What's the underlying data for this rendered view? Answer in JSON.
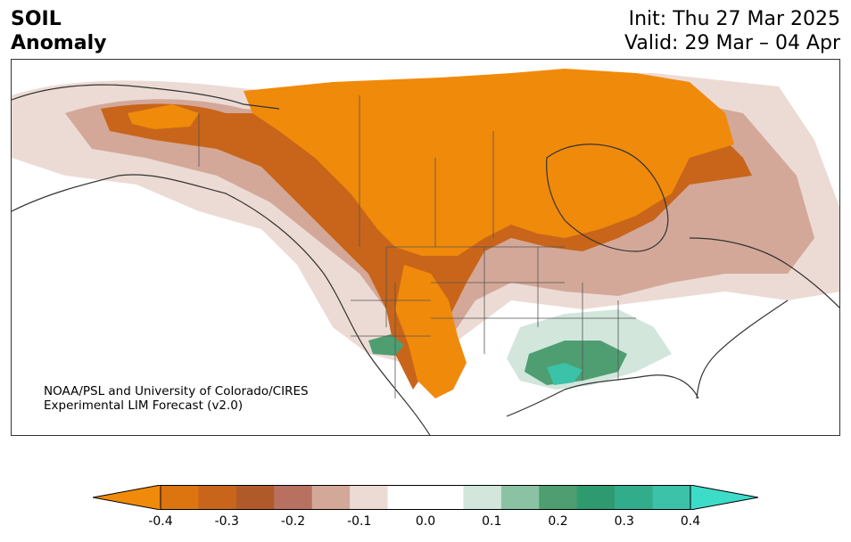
{
  "header": {
    "variable": "SOIL",
    "subtitle": "Anomaly",
    "init": "Init: Thu 27 Mar 2025",
    "valid": "Valid: 29 Mar – 04 Apr"
  },
  "credit": {
    "line1": "NOAA/PSL and University of Colorado/CIRES",
    "line2": "Experimental LIM Forecast (v2.0)"
  },
  "colorbar": {
    "colors": [
      "#f08a0a",
      "#dc740f",
      "#c8651a",
      "#b05a2a",
      "#b87060",
      "#d3a898",
      "#ecdbd4",
      "#ffffff",
      "#ffffff",
      "#d2e6dc",
      "#8cc2a4",
      "#4e9e72",
      "#2e9a70",
      "#32ad8c",
      "#3bc2a8",
      "#3ddcc8"
    ],
    "ticks": [
      "-0.4",
      "-0.3",
      "-0.2",
      "-0.1",
      "0.0",
      "0.1",
      "0.2",
      "0.3",
      "0.4"
    ]
  }
}
